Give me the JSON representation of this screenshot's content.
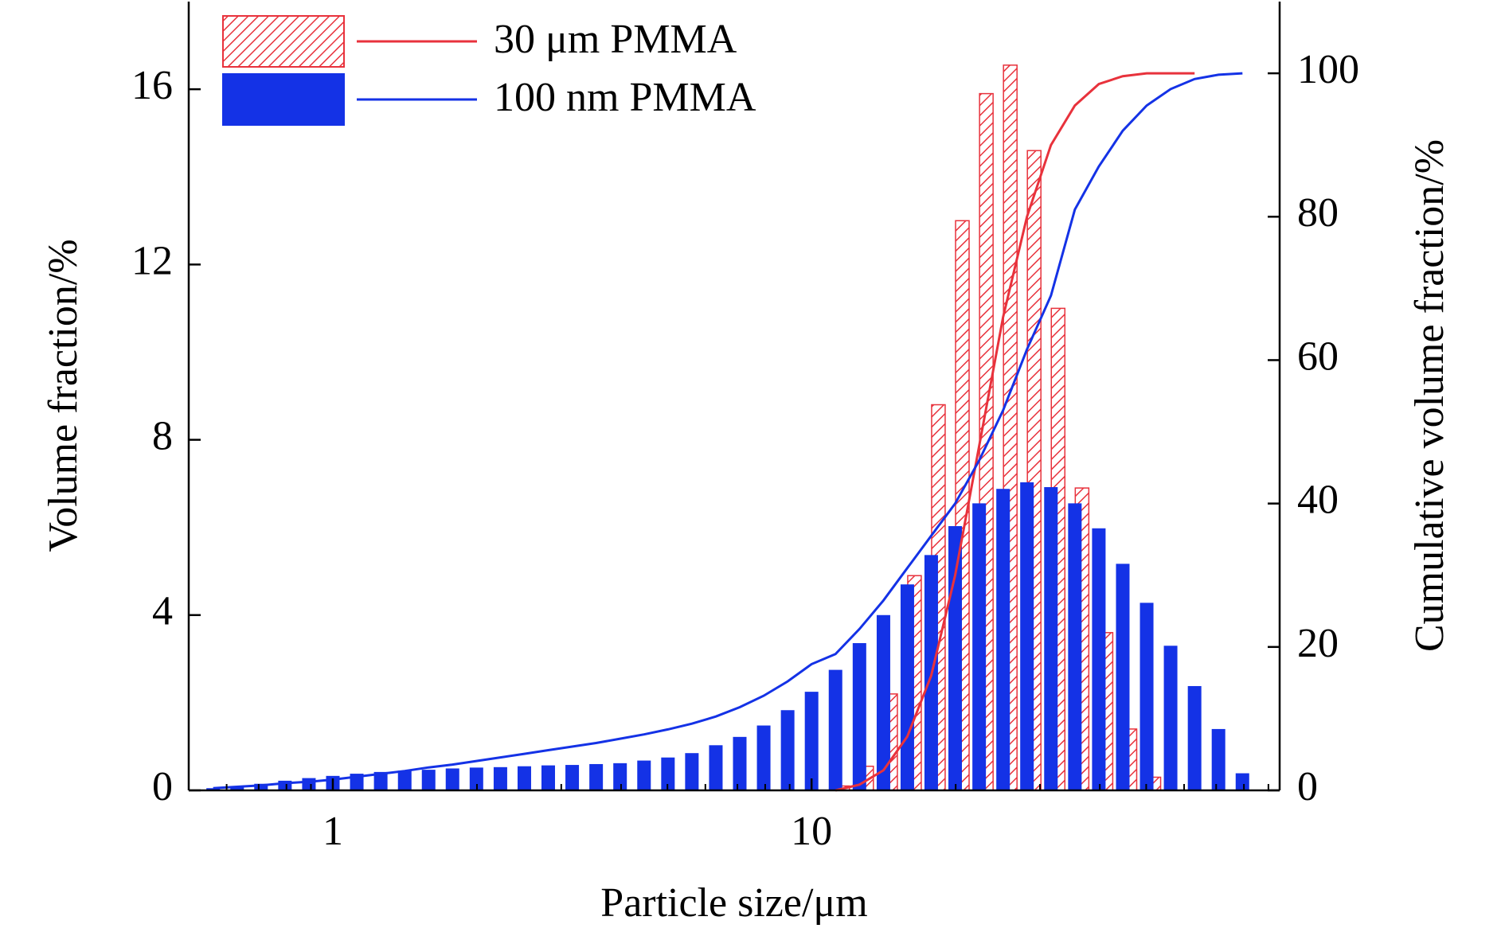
{
  "chart_data": {
    "type": "bar_line",
    "xlabel": "Particle size/μm",
    "ylabel": "Volume fraction/%",
    "y2label": "Cumulative volume fraction/%",
    "xscale": "log",
    "xlim": [
      0.5,
      95
    ],
    "xticks": [
      1,
      10
    ],
    "xminorticks": [
      0.6,
      0.7,
      0.8,
      0.9,
      2,
      3,
      4,
      5,
      6,
      7,
      8,
      9,
      20,
      30,
      40,
      50,
      60,
      70,
      80,
      90
    ],
    "ylim": [
      0,
      18
    ],
    "yticks": [
      0,
      4,
      8,
      12,
      16
    ],
    "y2lim": [
      0,
      110
    ],
    "y2ticks": [
      0,
      20,
      40,
      60,
      80,
      100
    ],
    "legend": "upper left",
    "x": [
      0.5623,
      0.631,
      0.7079,
      0.7943,
      0.8913,
      1.0,
      1.122,
      1.259,
      1.413,
      1.585,
      1.778,
      1.995,
      2.239,
      2.512,
      2.818,
      3.162,
      3.548,
      3.981,
      4.467,
      5.012,
      5.623,
      6.31,
      7.079,
      7.943,
      8.913,
      10,
      11.22,
      12.59,
      14.13,
      15.85,
      17.78,
      19.95,
      22.39,
      25.12,
      28.18,
      31.62,
      35.48,
      39.81,
      44.67,
      50.12,
      56.23,
      63.1,
      70.79,
      79.43
    ],
    "series": [
      {
        "name": "30 μm PMMA",
        "color": "#e8323c",
        "hatch": true,
        "values": [
          null,
          null,
          null,
          null,
          null,
          null,
          null,
          null,
          null,
          null,
          null,
          null,
          null,
          null,
          null,
          null,
          null,
          null,
          null,
          null,
          null,
          null,
          null,
          null,
          null,
          null,
          0.1,
          0.55,
          2.2,
          4.9,
          8.8,
          13.0,
          15.9,
          16.55,
          14.6,
          11.0,
          6.9,
          3.6,
          1.4,
          0.3,
          null,
          null,
          null,
          null
        ],
        "cumulative": [
          null,
          null,
          null,
          null,
          null,
          null,
          null,
          null,
          null,
          null,
          null,
          null,
          null,
          null,
          null,
          null,
          null,
          null,
          null,
          null,
          null,
          null,
          null,
          null,
          null,
          null,
          0,
          0.8,
          2.8,
          7.5,
          16,
          30,
          48,
          66,
          80,
          90,
          95.5,
          98.5,
          99.6,
          100,
          100,
          100,
          null,
          null
        ]
      },
      {
        "name": "100 nm PMMA",
        "color": "#1432e6",
        "hatch": false,
        "values": [
          0.05,
          0.1,
          0.15,
          0.22,
          0.28,
          0.33,
          0.38,
          0.42,
          0.45,
          0.47,
          0.5,
          0.52,
          0.53,
          0.55,
          0.57,
          0.58,
          0.6,
          0.62,
          0.68,
          0.75,
          0.85,
          1.03,
          1.22,
          1.48,
          1.83,
          2.25,
          2.75,
          3.36,
          4.0,
          4.7,
          5.37,
          6.03,
          6.55,
          6.88,
          7.03,
          6.92,
          6.55,
          5.98,
          5.17,
          4.28,
          3.3,
          2.38,
          1.4,
          0.39
        ],
        "cumulative": [
          0.3,
          0.5,
          0.7,
          1.0,
          1.2,
          1.5,
          1.9,
          2.3,
          2.7,
          3.2,
          3.6,
          4.1,
          4.6,
          5.1,
          5.6,
          6.1,
          6.6,
          7.2,
          7.8,
          8.5,
          9.3,
          10.3,
          11.6,
          13.2,
          15.2,
          17.6,
          19,
          22.5,
          26.5,
          31,
          35.5,
          40,
          46,
          53,
          61.5,
          69,
          81,
          87,
          92,
          95.5,
          97.8,
          99.2,
          99.8,
          100
        ]
      }
    ]
  }
}
